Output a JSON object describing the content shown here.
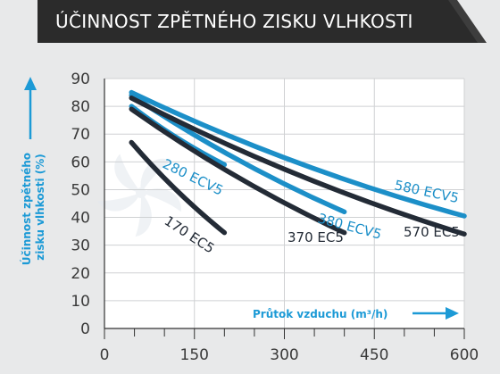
{
  "chart_data": {
    "type": "line",
    "title": "ÚČINNOST ZPĚTNÉHO ZISKU VLHKOSTI",
    "xlabel": "Průtok vzduchu (m³/h)",
    "ylabel": "Účinnost zpětného zisku vlhkosti (%)",
    "xlim": [
      0,
      600
    ],
    "ylim": [
      0,
      90
    ],
    "xticks": [
      "0",
      "150",
      "300",
      "450",
      "600"
    ],
    "yticks": [
      "0",
      "10",
      "20",
      "30",
      "40",
      "50",
      "60",
      "70",
      "80",
      "90"
    ],
    "grid": true,
    "series": [
      {
        "name": "280 ECV5",
        "color": "#1c8fc8",
        "points": [
          [
            45,
            80
          ],
          [
            200,
            59
          ]
        ]
      },
      {
        "name": "170 EC5",
        "color": "#232b36",
        "points": [
          [
            45,
            67
          ],
          [
            200,
            34.5
          ]
        ]
      },
      {
        "name": "380 ECV5",
        "color": "#1c8fc8",
        "points": [
          [
            45,
            84
          ],
          [
            400,
            42
          ]
        ]
      },
      {
        "name": "370 EC5",
        "color": "#232b36",
        "points": [
          [
            45,
            79
          ],
          [
            400,
            34.5
          ]
        ]
      },
      {
        "name": "580 ECV5",
        "color": "#1c8fc8",
        "points": [
          [
            45,
            85
          ],
          [
            600,
            40.5
          ]
        ]
      },
      {
        "name": "570 EC5",
        "color": "#232b36",
        "points": [
          [
            45,
            83
          ],
          [
            600,
            34
          ]
        ]
      }
    ]
  },
  "colors": {
    "background": "#e8e9ea",
    "banner": "#2b2b2b",
    "banner_edge": "#3d3d3d",
    "plot_bg": "#ffffff",
    "grid": "#cfd1d3",
    "axis": "#333333",
    "accent": "#1c9ad6",
    "watermark": "#eef1f4"
  }
}
